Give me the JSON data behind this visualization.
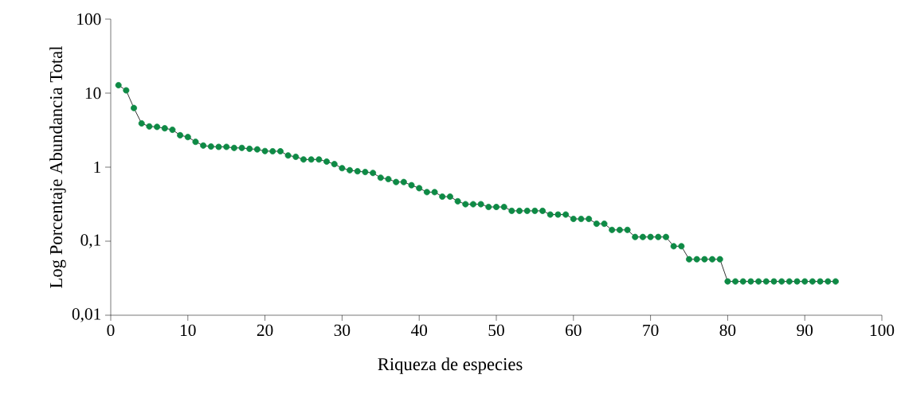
{
  "chart_data": {
    "type": "line",
    "xlabel": "Riqueza de especies",
    "ylabel": "Log Porcentaje Abundancia Total",
    "x": [
      1,
      2,
      3,
      4,
      5,
      6,
      7,
      8,
      9,
      10,
      11,
      12,
      13,
      14,
      15,
      16,
      17,
      18,
      19,
      20,
      21,
      22,
      23,
      24,
      25,
      26,
      27,
      28,
      29,
      30,
      31,
      32,
      33,
      34,
      35,
      36,
      37,
      38,
      39,
      40,
      41,
      42,
      43,
      44,
      45,
      46,
      47,
      48,
      49,
      50,
      51,
      52,
      53,
      54,
      55,
      56,
      57,
      58,
      59,
      60,
      61,
      62,
      63,
      64,
      65,
      66,
      67,
      68,
      69,
      70,
      71,
      72,
      73,
      74,
      75,
      76,
      77,
      78,
      79,
      80,
      81,
      82,
      83,
      84,
      85,
      86,
      87,
      88,
      89,
      90,
      91,
      92,
      93,
      94
    ],
    "series": [
      {
        "color": "#0e8a45",
        "values": [
          12.8,
          10.9,
          6.3,
          3.9,
          3.55,
          3.5,
          3.35,
          3.2,
          2.7,
          2.55,
          2.2,
          1.96,
          1.9,
          1.88,
          1.88,
          1.82,
          1.82,
          1.77,
          1.74,
          1.65,
          1.64,
          1.64,
          1.44,
          1.38,
          1.27,
          1.27,
          1.27,
          1.19,
          1.1,
          0.97,
          0.91,
          0.88,
          0.86,
          0.835,
          0.72,
          0.69,
          0.63,
          0.63,
          0.57,
          0.52,
          0.46,
          0.46,
          0.4,
          0.4,
          0.346,
          0.316,
          0.316,
          0.316,
          0.29,
          0.29,
          0.29,
          0.257,
          0.257,
          0.257,
          0.257,
          0.257,
          0.229,
          0.229,
          0.229,
          0.2,
          0.2,
          0.2,
          0.172,
          0.172,
          0.142,
          0.142,
          0.142,
          0.114,
          0.114,
          0.114,
          0.114,
          0.114,
          0.0855,
          0.0855,
          0.057,
          0.057,
          0.057,
          0.057,
          0.057,
          0.0286,
          0.0286,
          0.0286,
          0.0286,
          0.0286,
          0.0286,
          0.0286,
          0.0286,
          0.0286,
          0.0286,
          0.0286,
          0.0286,
          0.0286,
          0.0286,
          0.0286
        ]
      }
    ],
    "xlim": [
      0,
      100
    ],
    "xticks": [
      0,
      10,
      20,
      30,
      40,
      50,
      60,
      70,
      80,
      90,
      100
    ],
    "ylim": [
      0.01,
      100
    ],
    "yticks": [
      {
        "value": 0.01,
        "label": "0,01"
      },
      {
        "value": 0.1,
        "label": "0,1"
      },
      {
        "value": 1,
        "label": "1"
      },
      {
        "value": 10,
        "label": "10"
      },
      {
        "value": 100,
        "label": "100"
      }
    ],
    "log": "y",
    "marker": "circle",
    "line_style": "solid",
    "grid": false
  }
}
